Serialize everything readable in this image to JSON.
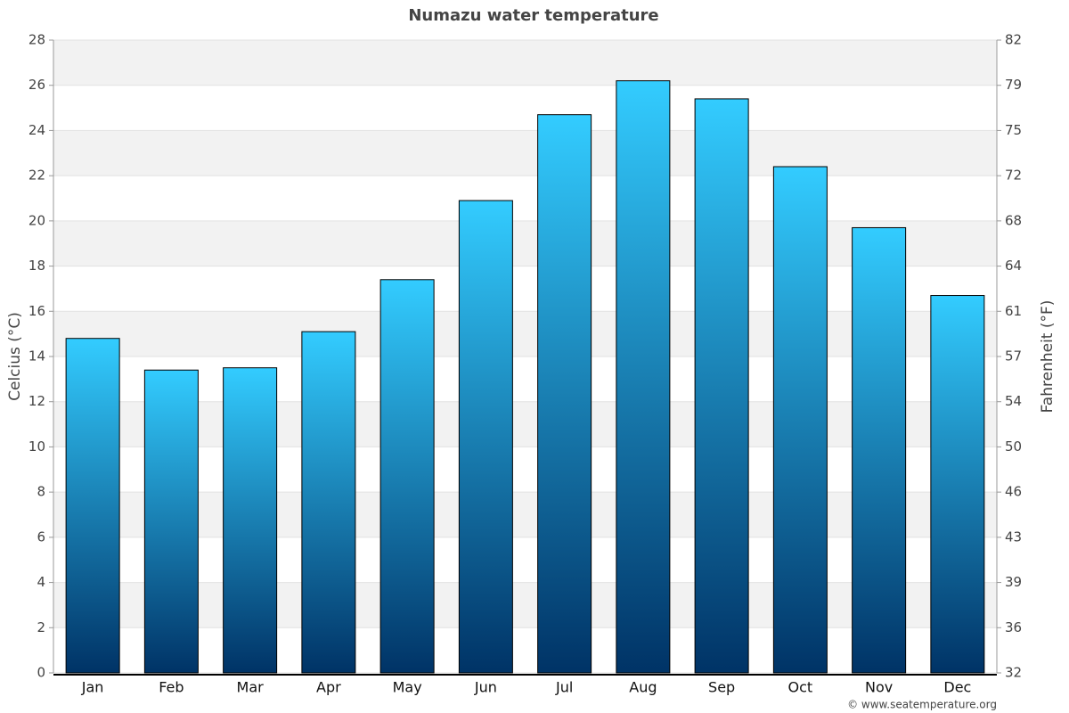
{
  "chart_data": {
    "type": "bar",
    "title": "Numazu water temperature",
    "categories": [
      "Jan",
      "Feb",
      "Mar",
      "Apr",
      "May",
      "Jun",
      "Jul",
      "Aug",
      "Sep",
      "Oct",
      "Nov",
      "Dec"
    ],
    "values": [
      14.8,
      13.4,
      13.5,
      15.1,
      17.4,
      20.9,
      24.7,
      26.2,
      25.4,
      22.4,
      19.7,
      16.7
    ],
    "color": [
      "#33ccff",
      "#003366"
    ],
    "ylabel": "Celcius (°C)",
    "y2label": "Fahrenheit (°F)",
    "ylim": [
      0,
      28
    ],
    "yticks": [
      0,
      2,
      4,
      6,
      8,
      10,
      12,
      14,
      16,
      18,
      20,
      22,
      24,
      26,
      28
    ],
    "y2lim": [
      32,
      82.4
    ],
    "y2ticks": [
      32,
      {
        "value": 35.6,
        "label": "36"
      },
      {
        "value": 39.2,
        "label": "39"
      },
      {
        "value": 42.8,
        "label": "43"
      },
      {
        "value": 46.4,
        "label": "46"
      },
      50,
      {
        "value": 53.6,
        "label": "54"
      },
      {
        "value": 57.2,
        "label": "57"
      },
      {
        "value": 60.8,
        "label": "61"
      },
      {
        "value": 64.4,
        "label": "64"
      },
      68,
      {
        "value": 71.6,
        "label": "72"
      },
      {
        "value": 75.2,
        "label": "75"
      },
      {
        "value": 78.8,
        "label": "79"
      },
      {
        "value": 82.4,
        "label": "82"
      }
    ],
    "grid": true,
    "source": "© www.seatemperature.org"
  }
}
